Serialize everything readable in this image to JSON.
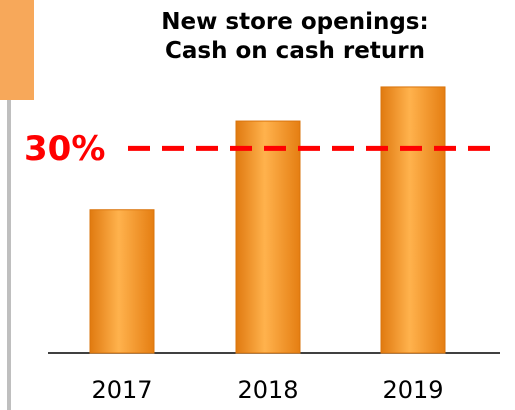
{
  "chart_data": {
    "type": "bar",
    "title": "New store openings: Cash on cash return",
    "categories": [
      "2017",
      "2018",
      "2019"
    ],
    "values": [
      21,
      34,
      39
    ],
    "color": "#f7962b",
    "ylim": [
      0,
      45
    ],
    "reference_line": {
      "value": 30,
      "label": "30%",
      "color": "#ff0000"
    }
  }
}
